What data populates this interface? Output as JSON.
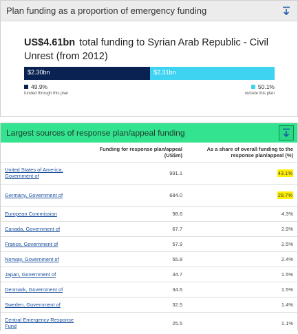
{
  "panel1": {
    "title": "Plan funding as a proportion of emergency funding",
    "download_icon": "download-icon",
    "amount": "US$4.61bn",
    "heading_text": "total funding to Syrian Arab Republic - Civil Unrest (from 2012)",
    "bar_left_label": "$2.30bn",
    "bar_right_label": "$2.31bn",
    "left_pct": "49.9%",
    "left_note": "funded through this plan",
    "right_pct": "50.1%",
    "right_note": "outside this plan",
    "colors": {
      "left": "#0a2252",
      "right": "#3fd3f2"
    },
    "proportion": {
      "funded_through_plan_fraction": 0.499
    }
  },
  "panel2": {
    "title": "Largest sources of response plan/appeal funding",
    "download_icon": "download-icon",
    "header_color": "#34e38f",
    "columns": [
      "",
      "Funding for response plan/appeal (US$m)",
      "As a share of overall funding to the response plan/appeal (%)"
    ],
    "rows": [
      {
        "name": "United States of America, Government of",
        "funding": "991.1",
        "share": "43.1%"
      },
      {
        "name": "Germany, Government of",
        "funding": "684.0",
        "share": "29.7%"
      },
      {
        "name": "European Commission",
        "funding": "98.6",
        "share": "4.3%"
      },
      {
        "name": "Canada, Government of",
        "funding": "67.7",
        "share": "2.9%"
      },
      {
        "name": "France, Government of",
        "funding": "57.9",
        "share": "2.5%"
      },
      {
        "name": "Norway, Government of",
        "funding": "55.8",
        "share": "2.4%"
      },
      {
        "name": "Japan, Government of",
        "funding": "34.7",
        "share": "1.5%"
      },
      {
        "name": "Denmark, Government of",
        "funding": "34.6",
        "share": "1.5%"
      },
      {
        "name": "Sweden, Government of",
        "funding": "32.5",
        "share": "1.4%"
      },
      {
        "name": "Central Emergency Response Fund",
        "funding": "25.5",
        "share": "1.1%"
      }
    ]
  }
}
